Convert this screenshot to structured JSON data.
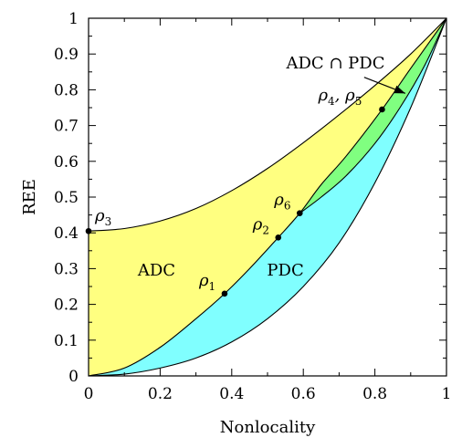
{
  "chart_data": {
    "type": "area",
    "title": "",
    "xlabel": "Nonlocality",
    "ylabel": "REE",
    "xlim": [
      0,
      1
    ],
    "ylim": [
      0,
      1
    ],
    "xticks": [
      0,
      0.2,
      0.4,
      0.6,
      0.8,
      1
    ],
    "xtick_labels": [
      "0",
      "0.2",
      "0.4",
      "0.6",
      "0.8",
      "1"
    ],
    "yticks": [
      0,
      0.1,
      0.2,
      0.3,
      0.4,
      0.5,
      0.6,
      0.7,
      0.8,
      0.9,
      1
    ],
    "ytick_labels": [
      "0",
      "0.1",
      "0.2",
      "0.3",
      "0.4",
      "0.5",
      "0.6",
      "0.7",
      "0.8",
      "0.9",
      "1"
    ],
    "grid": false,
    "curves": {
      "adc_upper": [
        [
          0,
          0.405
        ],
        [
          0.1,
          0.412
        ],
        [
          0.2,
          0.433
        ],
        [
          0.3,
          0.468
        ],
        [
          0.4,
          0.518
        ],
        [
          0.5,
          0.58
        ],
        [
          0.6,
          0.652
        ],
        [
          0.7,
          0.73
        ],
        [
          0.8,
          0.812
        ],
        [
          0.9,
          0.9
        ],
        [
          1,
          1
        ]
      ],
      "pdc_lower": [
        [
          0,
          0
        ],
        [
          0.1,
          0.005
        ],
        [
          0.2,
          0.022
        ],
        [
          0.3,
          0.05
        ],
        [
          0.4,
          0.095
        ],
        [
          0.5,
          0.16
        ],
        [
          0.6,
          0.25
        ],
        [
          0.7,
          0.372
        ],
        [
          0.8,
          0.54
        ],
        [
          0.9,
          0.75
        ],
        [
          1,
          1
        ]
      ],
      "middle": [
        [
          0,
          0
        ],
        [
          0.1,
          0.022
        ],
        [
          0.2,
          0.08
        ],
        [
          0.3,
          0.16
        ],
        [
          0.38,
          0.23
        ],
        [
          0.45,
          0.3
        ],
        [
          0.53,
          0.387
        ],
        [
          0.59,
          0.455
        ],
        [
          0.65,
          0.535
        ],
        [
          0.72,
          0.615
        ],
        [
          0.82,
          0.745
        ],
        [
          0.9,
          0.86
        ],
        [
          1,
          1
        ]
      ],
      "pdc_upper_branch": [
        [
          0.59,
          0.455
        ],
        [
          0.65,
          0.5
        ],
        [
          0.72,
          0.56
        ],
        [
          0.8,
          0.65
        ],
        [
          0.87,
          0.75
        ],
        [
          0.94,
          0.87
        ],
        [
          1,
          1
        ]
      ]
    },
    "regions": [
      {
        "name": "ADC",
        "color": "#ffff80",
        "label_at": [
          0.19,
          0.28
        ]
      },
      {
        "name": "PDC",
        "color": "#80ffff",
        "label_at": [
          0.55,
          0.28
        ]
      },
      {
        "name": "ADC ∩ PDC",
        "color": "#80ff80",
        "label_at": [
          0.85,
          0.88
        ]
      }
    ],
    "points": [
      {
        "name": "ρ1",
        "x": 0.38,
        "y": 0.23
      },
      {
        "name": "ρ2",
        "x": 0.53,
        "y": 0.387
      },
      {
        "name": "ρ3",
        "x": 0.0,
        "y": 0.405
      },
      {
        "name": "ρ4, ρ5",
        "x": 0.82,
        "y": 0.745
      },
      {
        "name": "ρ6",
        "x": 0.59,
        "y": 0.455
      }
    ]
  },
  "labels": {
    "region_adc": "ADC",
    "region_pdc": "PDC",
    "region_intersection": "ADC ∩ PDC",
    "rho": "ρ",
    "p1_sub": "1",
    "p2_sub": "2",
    "p3_sub": "3",
    "p4_sub": "4",
    "p5_sub": "5",
    "p6_sub": "6",
    "p45_sep": ", "
  }
}
